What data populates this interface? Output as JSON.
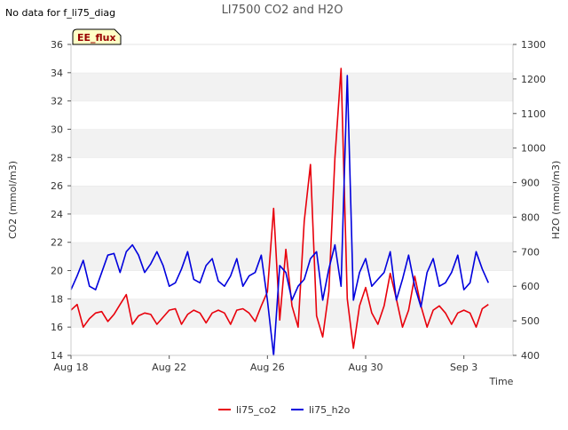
{
  "status_note": "No data for f_li75_diag",
  "chart_data": {
    "type": "line",
    "title": "LI7500 CO2 and H2O",
    "badge": "EE_flux",
    "xlabel": "Time",
    "x_tick_labels": [
      "Aug 18",
      "Aug 22",
      "Aug 26",
      "Aug 30",
      "Sep 3"
    ],
    "x_tick_days": [
      0,
      4,
      8,
      12,
      16
    ],
    "x_range_days": [
      0,
      18
    ],
    "y_left": {
      "label": "CO2 (mmol/m3)",
      "range": [
        14,
        36
      ],
      "ticks": [
        14,
        16,
        18,
        20,
        22,
        24,
        26,
        28,
        30,
        32,
        34,
        36
      ]
    },
    "y_right": {
      "label": "H2O (mmol/m3)",
      "range": [
        400,
        1300
      ],
      "ticks": [
        400,
        500,
        600,
        700,
        800,
        900,
        1000,
        1100,
        1200,
        1300
      ]
    },
    "grid": true,
    "legend_position": "bottom-center",
    "series": [
      {
        "name": "li75_co2",
        "axis": "left",
        "color": "#e8000b",
        "x": [
          0.0,
          0.25,
          0.5,
          0.75,
          1.0,
          1.25,
          1.5,
          1.75,
          2.0,
          2.25,
          2.5,
          2.75,
          3.0,
          3.25,
          3.5,
          3.75,
          4.0,
          4.25,
          4.5,
          4.75,
          5.0,
          5.25,
          5.5,
          5.75,
          6.0,
          6.25,
          6.5,
          6.75,
          7.0,
          7.25,
          7.5,
          7.75,
          8.0,
          8.25,
          8.5,
          8.75,
          9.0,
          9.25,
          9.5,
          9.75,
          10.0,
          10.25,
          10.5,
          10.75,
          11.0,
          11.25,
          11.5,
          11.75,
          12.0,
          12.25,
          12.5,
          12.75,
          13.0,
          13.25,
          13.5,
          13.75,
          14.0,
          14.25,
          14.5,
          14.75,
          15.0,
          15.25,
          15.5,
          15.75,
          16.0,
          16.25,
          16.5,
          16.75,
          17.0
        ],
        "values": [
          17.2,
          17.6,
          16.0,
          16.6,
          17.0,
          17.1,
          16.4,
          16.9,
          17.6,
          18.3,
          16.2,
          16.8,
          17.0,
          16.9,
          16.2,
          16.7,
          17.2,
          17.3,
          16.2,
          16.9,
          17.2,
          17.0,
          16.3,
          17.0,
          17.2,
          17.0,
          16.2,
          17.2,
          17.3,
          17.0,
          16.4,
          17.5,
          18.5,
          24.4,
          16.5,
          21.5,
          17.5,
          16.0,
          23.5,
          27.5,
          16.8,
          15.3,
          18.5,
          28.0,
          34.3,
          18.0,
          14.5,
          17.5,
          18.8,
          17.0,
          16.2,
          17.5,
          19.8,
          18.0,
          16.0,
          17.2,
          19.6,
          17.5,
          16.0,
          17.2,
          17.5,
          17.0,
          16.2,
          17.0,
          17.2,
          17.0,
          16.0,
          17.3,
          17.6
        ]
      },
      {
        "name": "li75_h2o",
        "axis": "right",
        "color": "#0000dd",
        "x": [
          0.0,
          0.25,
          0.5,
          0.75,
          1.0,
          1.25,
          1.5,
          1.75,
          2.0,
          2.25,
          2.5,
          2.75,
          3.0,
          3.25,
          3.5,
          3.75,
          4.0,
          4.25,
          4.5,
          4.75,
          5.0,
          5.25,
          5.5,
          5.75,
          6.0,
          6.25,
          6.5,
          6.75,
          7.0,
          7.25,
          7.5,
          7.75,
          8.0,
          8.25,
          8.5,
          8.75,
          9.0,
          9.25,
          9.5,
          9.75,
          10.0,
          10.25,
          10.5,
          10.75,
          11.0,
          11.25,
          11.5,
          11.75,
          12.0,
          12.25,
          12.5,
          12.75,
          13.0,
          13.25,
          13.5,
          13.75,
          14.0,
          14.25,
          14.5,
          14.75,
          15.0,
          15.25,
          15.5,
          15.75,
          16.0,
          16.25,
          16.5,
          16.75,
          17.0
        ],
        "values": [
          590,
          630,
          675,
          600,
          590,
          640,
          690,
          695,
          640,
          700,
          720,
          690,
          640,
          665,
          700,
          660,
          600,
          610,
          650,
          700,
          620,
          610,
          660,
          680,
          615,
          600,
          630,
          680,
          600,
          630,
          640,
          690,
          560,
          400,
          660,
          640,
          560,
          600,
          620,
          680,
          700,
          560,
          650,
          720,
          600,
          1210,
          560,
          640,
          680,
          600,
          620,
          640,
          700,
          560,
          620,
          690,
          600,
          540,
          640,
          680,
          600,
          610,
          640,
          690,
          590,
          610,
          700,
          650,
          610
        ]
      }
    ]
  }
}
